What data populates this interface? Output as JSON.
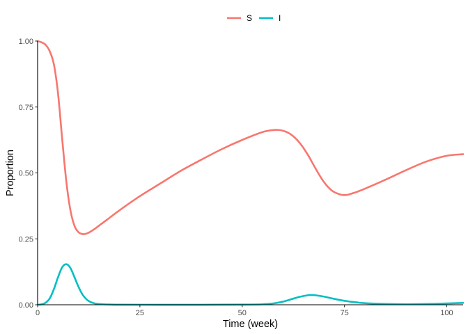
{
  "chart_data": {
    "type": "line",
    "xlabel": "Time (week)",
    "ylabel": "Proportion",
    "xlim": [
      0,
      104
    ],
    "ylim": [
      0,
      1
    ],
    "x_ticks": [
      0,
      25,
      50,
      75,
      100
    ],
    "x_tick_labels": [
      "0",
      "25",
      "50",
      "75",
      "100"
    ],
    "y_ticks": [
      0,
      0.25,
      0.5,
      0.75,
      1.0
    ],
    "y_tick_labels": [
      "0.00",
      "0.25",
      "0.50",
      "0.75",
      "1.00"
    ],
    "grid": false,
    "legend": {
      "position": "top-center",
      "entries": [
        "S",
        "I"
      ]
    },
    "series": [
      {
        "name": "S",
        "color": "#F8766D",
        "x": [
          0,
          1,
          2,
          3,
          4,
          5,
          6,
          7,
          8,
          9,
          10,
          11,
          12,
          13,
          14,
          15,
          17,
          20,
          25,
          30,
          35,
          40,
          45,
          50,
          55,
          58,
          60,
          62,
          64,
          66,
          68,
          70,
          72,
          74,
          75,
          76,
          78,
          80,
          85,
          90,
          95,
          100,
          104
        ],
        "values": [
          1.0,
          0.995,
          0.985,
          0.96,
          0.91,
          0.8,
          0.63,
          0.47,
          0.36,
          0.3,
          0.275,
          0.268,
          0.27,
          0.278,
          0.288,
          0.3,
          0.323,
          0.358,
          0.412,
          0.46,
          0.508,
          0.55,
          0.59,
          0.625,
          0.655,
          0.663,
          0.66,
          0.645,
          0.615,
          0.57,
          0.515,
          0.465,
          0.432,
          0.418,
          0.416,
          0.418,
          0.428,
          0.44,
          0.474,
          0.51,
          0.543,
          0.565,
          0.571
        ]
      },
      {
        "name": "I",
        "color": "#00BFC4",
        "x": [
          0,
          1,
          2,
          3,
          4,
          5,
          6,
          7,
          8,
          9,
          10,
          11,
          12,
          13,
          14,
          16,
          18,
          20,
          30,
          40,
          50,
          55,
          58,
          60,
          62,
          64,
          66,
          67,
          68,
          70,
          72,
          75,
          78,
          80,
          85,
          90,
          95,
          100,
          104
        ],
        "values": [
          0.0,
          0.002,
          0.008,
          0.025,
          0.06,
          0.105,
          0.142,
          0.154,
          0.14,
          0.105,
          0.068,
          0.038,
          0.02,
          0.01,
          0.005,
          0.002,
          0.001,
          0.0005,
          0.0003,
          0.0003,
          0.0008,
          0.002,
          0.006,
          0.012,
          0.021,
          0.03,
          0.036,
          0.037,
          0.036,
          0.031,
          0.024,
          0.015,
          0.009,
          0.006,
          0.003,
          0.002,
          0.003,
          0.005,
          0.007
        ]
      }
    ]
  }
}
